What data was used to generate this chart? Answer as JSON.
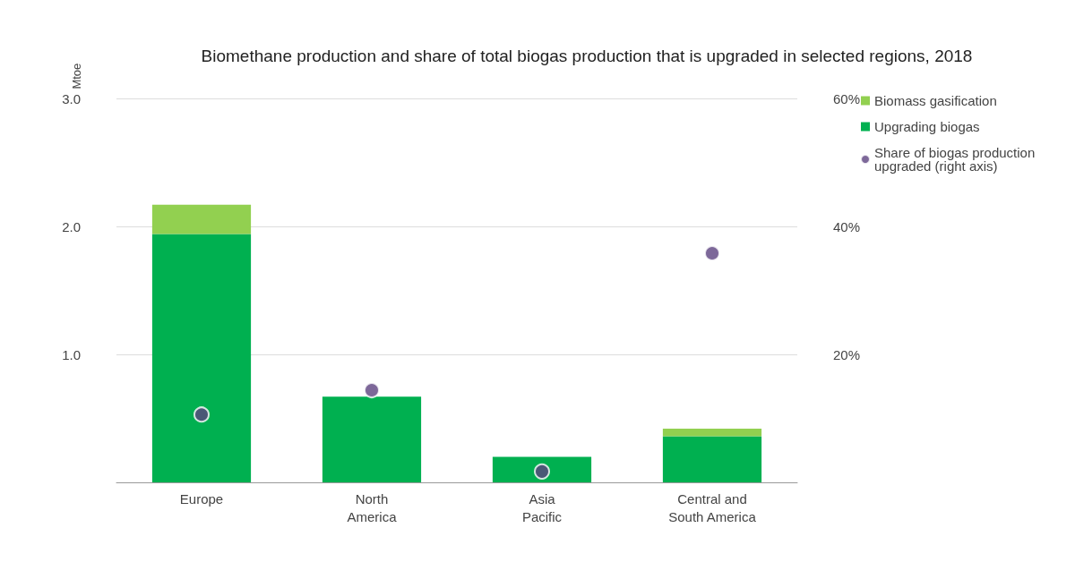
{
  "chart_data": {
    "type": "bar",
    "title": "Biomethane production and share of total biogas production that is upgraded in selected regions, 2018",
    "ylabel": "Mtoe",
    "categories": [
      "Europe",
      "North\nAmerica",
      "Asia\nPacific",
      "Central and\nSouth America"
    ],
    "stacked": true,
    "series": [
      {
        "name": "Upgrading biogas",
        "color": "#00b050",
        "values": [
          1.94,
          0.67,
          0.2,
          0.36
        ]
      },
      {
        "name": "Biomass gasification",
        "color": "#92d050",
        "values": [
          0.23,
          0,
          0,
          0.06
        ]
      },
      {
        "name": "Share of biogas production upgraded (right axis)",
        "type": "scatter",
        "axis": "y2",
        "marker": "circle",
        "color": "#5c4280",
        "values": [
          10.6,
          14.4,
          1.7,
          35.8
        ]
      }
    ],
    "ylim": [
      0,
      3
    ],
    "yticks": [
      {
        "value": 0,
        "label": null
      },
      {
        "value": 1,
        "label": "1.0"
      },
      {
        "value": 2,
        "label": "2.0"
      },
      {
        "value": 3,
        "label": "3.0"
      }
    ],
    "y2lim": [
      0,
      60
    ],
    "y2ticks": [
      {
        "value": 0,
        "label": null
      },
      {
        "value": 20,
        "label": "20%"
      },
      {
        "value": 40,
        "label": "40%"
      },
      {
        "value": 60,
        "label": "60%"
      }
    ],
    "grid": "y",
    "legend": "top right"
  }
}
